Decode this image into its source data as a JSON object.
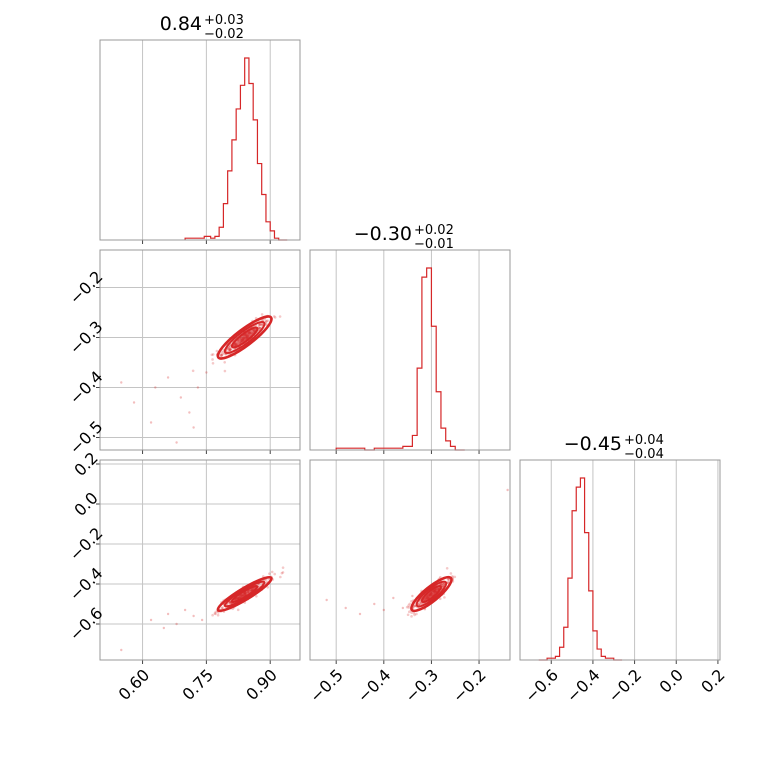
{
  "chart_data": {
    "type": "corner",
    "color": "#d62728",
    "parameters": [
      {
        "title_main": "0.84",
        "title_plus": "+0.03",
        "title_minus": "−0.02",
        "range": [
          0.5,
          0.97
        ],
        "ticks": [
          0.6,
          0.75,
          0.9
        ],
        "tick_labels": [
          "0.60",
          "0.75",
          "0.90"
        ]
      },
      {
        "title_main": "−0.30",
        "title_plus": "+0.02",
        "title_minus": "−0.01",
        "range": [
          -0.555,
          -0.135
        ],
        "ticks": [
          -0.5,
          -0.4,
          -0.3,
          -0.2
        ],
        "tick_labels": [
          "−0.5",
          "−0.4",
          "−0.3",
          "−0.2"
        ]
      },
      {
        "title_main": "−0.45",
        "title_plus": "+0.04",
        "title_minus": "−0.04",
        "range": [
          -0.75,
          0.21
        ],
        "ticks": [
          -0.6,
          -0.4,
          -0.2,
          0.0,
          0.2
        ],
        "tick_labels": [
          "−0.6",
          "−0.4",
          "−0.2",
          "0.0",
          "0.2"
        ]
      }
    ],
    "row_axis": [
      null,
      {
        "range": [
          -0.525,
          -0.125
        ],
        "ticks": [
          -0.5,
          -0.4,
          -0.3,
          -0.2
        ],
        "tick_labels": [
          "−0.5",
          "−0.4",
          "−0.3",
          "−0.2"
        ]
      },
      {
        "range": [
          -0.78,
          0.22
        ],
        "ticks": [
          -0.6,
          -0.4,
          -0.2,
          0.0,
          0.2
        ],
        "tick_labels": [
          "−0.6",
          "−0.4",
          "−0.2",
          "0.0",
          "0.2"
        ]
      }
    ],
    "histograms": [
      {
        "x": [
          0.7,
          0.73,
          0.745,
          0.76,
          0.77,
          0.78,
          0.79,
          0.8,
          0.81,
          0.82,
          0.83,
          0.84,
          0.85,
          0.86,
          0.87,
          0.88,
          0.89,
          0.9,
          0.91,
          0.92,
          0.93
        ],
        "y": [
          0.01,
          0.01,
          0.02,
          0.01,
          0.02,
          0.07,
          0.2,
          0.38,
          0.55,
          0.72,
          0.85,
          1.0,
          0.86,
          0.66,
          0.42,
          0.25,
          0.1,
          0.05,
          0.01,
          0.0,
          0.0
        ]
      },
      {
        "x": [
          -0.5,
          -0.48,
          -0.46,
          -0.44,
          -0.42,
          -0.4,
          -0.38,
          -0.36,
          -0.34,
          -0.33,
          -0.32,
          -0.31,
          -0.3,
          -0.29,
          -0.28,
          -0.27,
          -0.26,
          -0.25,
          -0.24
        ],
        "y": [
          0.01,
          0.01,
          0.01,
          0.0,
          0.01,
          0.01,
          0.01,
          0.02,
          0.08,
          0.45,
          0.95,
          1.0,
          0.68,
          0.32,
          0.12,
          0.05,
          0.02,
          0.0,
          0.0
        ]
      },
      {
        "x": [
          -0.66,
          -0.62,
          -0.58,
          -0.56,
          -0.54,
          -0.52,
          -0.5,
          -0.48,
          -0.46,
          -0.44,
          -0.42,
          -0.4,
          -0.38,
          -0.36,
          -0.34,
          -0.32,
          -0.3,
          -0.28
        ],
        "y": [
          0.0,
          0.01,
          0.02,
          0.07,
          0.18,
          0.45,
          0.82,
          0.95,
          1.0,
          0.7,
          0.38,
          0.16,
          0.06,
          0.02,
          0.01,
          0.01,
          0.0,
          0.0
        ]
      }
    ],
    "scatter_panels": [
      {
        "row": 1,
        "col": 0,
        "x_center": 0.84,
        "y_center": -0.3,
        "x_sd": 0.03,
        "y_sd": 0.02,
        "corr": 0.88,
        "outliers": [
          [
            0.55,
            -0.39
          ],
          [
            0.58,
            -0.43
          ],
          [
            0.63,
            -0.4
          ],
          [
            0.66,
            -0.38
          ],
          [
            0.69,
            -0.42
          ],
          [
            0.71,
            -0.45
          ],
          [
            0.73,
            -0.4
          ],
          [
            0.75,
            -0.37
          ],
          [
            0.72,
            -0.48
          ],
          [
            0.68,
            -0.51
          ],
          [
            0.62,
            -0.47
          ]
        ]
      },
      {
        "row": 2,
        "col": 0,
        "x_center": 0.84,
        "y_center": -0.45,
        "x_sd": 0.03,
        "y_sd": 0.04,
        "corr": 0.92,
        "outliers": [
          [
            0.55,
            -0.73
          ],
          [
            0.62,
            -0.58
          ],
          [
            0.65,
            -0.62
          ],
          [
            0.68,
            -0.6
          ],
          [
            0.72,
            -0.56
          ],
          [
            0.74,
            -0.58
          ],
          [
            0.7,
            -0.53
          ],
          [
            0.66,
            -0.55
          ]
        ]
      },
      {
        "row": 2,
        "col": 1,
        "x_center": -0.3,
        "y_center": -0.45,
        "x_sd": 0.02,
        "y_sd": 0.04,
        "corr": 0.85,
        "outliers": [
          [
            -0.52,
            -0.48
          ],
          [
            -0.48,
            -0.52
          ],
          [
            -0.45,
            -0.55
          ],
          [
            -0.42,
            -0.5
          ],
          [
            -0.4,
            -0.53
          ],
          [
            -0.38,
            -0.47
          ],
          [
            -0.36,
            -0.52
          ],
          [
            -0.34,
            -0.46
          ],
          [
            -0.14,
            0.07
          ]
        ]
      }
    ]
  }
}
